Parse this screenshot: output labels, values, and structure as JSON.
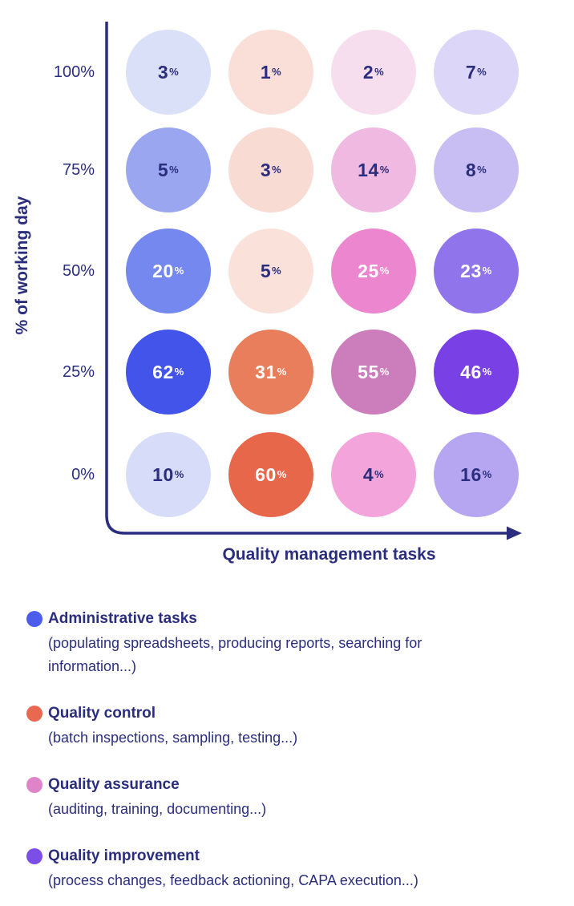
{
  "chart": {
    "axis_color": "#2B2E7E",
    "text_color": "#2B2E7E"
  },
  "chart_data": {
    "type": "bubble-matrix",
    "xlabel": "Quality management tasks",
    "ylabel": "% of working day",
    "unit": "%",
    "x_categories": [
      "Administrative tasks",
      "Quality control",
      "Quality assurance",
      "Quality improvement"
    ],
    "y_categories": [
      "100%",
      "75%",
      "50%",
      "25%",
      "0%"
    ],
    "values": [
      [
        3,
        1,
        2,
        7
      ],
      [
        5,
        3,
        14,
        8
      ],
      [
        20,
        5,
        25,
        23
      ],
      [
        62,
        31,
        55,
        46
      ],
      [
        10,
        60,
        4,
        16
      ]
    ],
    "cell_fill_colors": [
      [
        "#DBE0F9",
        "#F9DFD7",
        "#F7DEEE",
        "#DCD6F8"
      ],
      [
        "#9AA6F0",
        "#F8DBD3",
        "#EFB9E1",
        "#C8BEF3"
      ],
      [
        "#7488F0",
        "#FAE2DB",
        "#EC86CE",
        "#9074EB"
      ],
      [
        "#4254E9",
        "#E87E5B",
        "#CB7EBB",
        "#7840E5"
      ],
      [
        "#D7DCF8",
        "#E7674B",
        "#F3A5DB",
        "#B6A5F1"
      ]
    ],
    "cell_text_colors": [
      [
        "#2B2E7E",
        "#2B2E7E",
        "#2B2E7E",
        "#2B2E7E"
      ],
      [
        "#2B2E7E",
        "#2B2E7E",
        "#2B2E7E",
        "#2B2E7E"
      ],
      [
        "#FFFFFF",
        "#2B2E7E",
        "#FFFFFF",
        "#FFFFFF"
      ],
      [
        "#FFFFFF",
        "#FFFFFF",
        "#FFFFFF",
        "#FFFFFF"
      ],
      [
        "#2B2E7E",
        "#FFFFFF",
        "#2B2E7E",
        "#2B2E7E"
      ]
    ],
    "legend_position": "bottom",
    "grid": false
  },
  "legend": {
    "items": [
      {
        "label": "Administrative tasks",
        "description": "(populating spreadsheets, producing reports, searching for information...)",
        "color": "#4C5CEC"
      },
      {
        "label": "Quality control",
        "description": "(batch inspections, sampling, testing...)",
        "color": "#E8694F"
      },
      {
        "label": "Quality assurance",
        "description": "(auditing, training, documenting...)",
        "color": "#DF84C9"
      },
      {
        "label": "Quality improvement",
        "description": "(process changes, feedback actioning, CAPA execution...)",
        "color": "#7C4EE8"
      }
    ]
  }
}
